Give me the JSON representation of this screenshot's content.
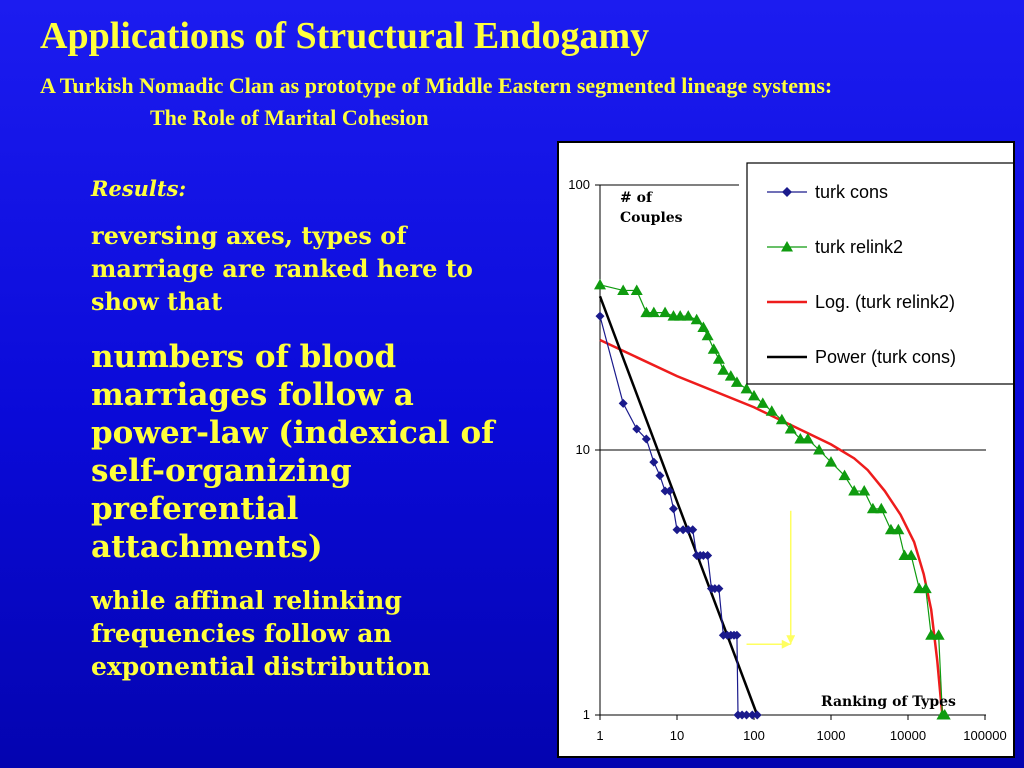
{
  "slide": {
    "title": "Applications of Structural Endogamy",
    "subtitle_line1": "A Turkish Nomadic Clan as prototype of Middle Eastern segmented lineage systems:",
    "subtitle_line2": "The Role of Marital Cohesion"
  },
  "results": {
    "label": "Results:",
    "p1": "reversing axes, types of marriage are ranked here to show that",
    "p2": "numbers of blood marriages follow a power-law (indexical of self-organizing preferential attachments)",
    "p3": "while affinal relinking frequencies follow  an exponential distribution"
  },
  "chart_data": {
    "type": "scatter",
    "xscale": "log",
    "yscale": "log",
    "xlim": [
      1,
      100000
    ],
    "ylim": [
      1,
      100
    ],
    "xticks": [
      "1",
      "10",
      "100",
      "1000",
      "10000",
      "100000"
    ],
    "yticks": [
      "1",
      "10",
      "100"
    ],
    "ylabel": "# of Couples",
    "xlabel": "Ranking of Types",
    "grid": "y-major",
    "legend_position": "top-right",
    "legend": [
      "turk cons",
      "turk relink2",
      "Log. (turk relink2)",
      "Power (turk cons)"
    ],
    "colors": {
      "turk_cons": "#1a1a8c",
      "turk_relink2": "#0f9b0f",
      "log_fit": "#ee1c1c",
      "power_fit": "#000000",
      "annotation": "#ffff60"
    },
    "series": [
      {
        "name": "turk cons",
        "marker": "diamond",
        "points": [
          [
            1,
            32
          ],
          [
            2,
            15
          ],
          [
            3,
            12
          ],
          [
            4,
            11
          ],
          [
            5,
            9
          ],
          [
            6,
            8
          ],
          [
            7,
            7
          ],
          [
            8,
            7
          ],
          [
            9,
            6
          ],
          [
            10,
            5
          ],
          [
            12,
            5
          ],
          [
            14,
            5
          ],
          [
            16,
            5
          ],
          [
            18,
            4
          ],
          [
            20,
            4
          ],
          [
            22,
            4
          ],
          [
            25,
            4
          ],
          [
            28,
            3
          ],
          [
            31,
            3
          ],
          [
            35,
            3
          ],
          [
            40,
            2
          ],
          [
            45,
            2
          ],
          [
            50,
            2
          ],
          [
            55,
            2
          ],
          [
            60,
            2
          ],
          [
            62,
            1
          ],
          [
            70,
            1
          ],
          [
            80,
            1
          ],
          [
            95,
            1
          ],
          [
            110,
            1
          ]
        ]
      },
      {
        "name": "turk relink2",
        "marker": "triangle",
        "points": [
          [
            1,
            42
          ],
          [
            2,
            40
          ],
          [
            3,
            40
          ],
          [
            4,
            33
          ],
          [
            5,
            33
          ],
          [
            7,
            33
          ],
          [
            9,
            32
          ],
          [
            11,
            32
          ],
          [
            14,
            32
          ],
          [
            18,
            31
          ],
          [
            22,
            29
          ],
          [
            25,
            27
          ],
          [
            30,
            24
          ],
          [
            35,
            22
          ],
          [
            40,
            20
          ],
          [
            50,
            19
          ],
          [
            60,
            18
          ],
          [
            80,
            17
          ],
          [
            100,
            16
          ],
          [
            130,
            15
          ],
          [
            170,
            14
          ],
          [
            230,
            13
          ],
          [
            300,
            12
          ],
          [
            400,
            11
          ],
          [
            500,
            11
          ],
          [
            700,
            10
          ],
          [
            1000,
            9
          ],
          [
            1500,
            8
          ],
          [
            2000,
            7
          ],
          [
            2700,
            7
          ],
          [
            3500,
            6
          ],
          [
            4500,
            6
          ],
          [
            6000,
            5
          ],
          [
            7500,
            5
          ],
          [
            9000,
            4
          ],
          [
            11000,
            4
          ],
          [
            14000,
            3
          ],
          [
            17000,
            3
          ],
          [
            20000,
            2
          ],
          [
            25000,
            2
          ],
          [
            28000,
            1
          ],
          [
            30000,
            1
          ]
        ]
      }
    ],
    "fits": [
      {
        "name": "Log. (turk relink2)",
        "points": [
          [
            1,
            26
          ],
          [
            10,
            19
          ],
          [
            100,
            14.5
          ],
          [
            1000,
            10.5
          ],
          [
            2000,
            9.3
          ],
          [
            3000,
            8.4
          ],
          [
            5000,
            7
          ],
          [
            8000,
            5.7
          ],
          [
            12000,
            4.5
          ],
          [
            16000,
            3.4
          ],
          [
            20000,
            2.5
          ],
          [
            24000,
            1.6
          ],
          [
            27000,
            1.1
          ],
          [
            28000,
            1
          ]
        ]
      },
      {
        "name": "Power (turk cons)",
        "points": [
          [
            1,
            38
          ],
          [
            110,
            1
          ]
        ]
      }
    ],
    "annotation_arrows": [
      {
        "from": [
          300,
          5.9
        ],
        "to": [
          300,
          1.85
        ]
      },
      {
        "from": [
          80,
          1.85
        ],
        "to": [
          300,
          1.85
        ]
      }
    ]
  }
}
